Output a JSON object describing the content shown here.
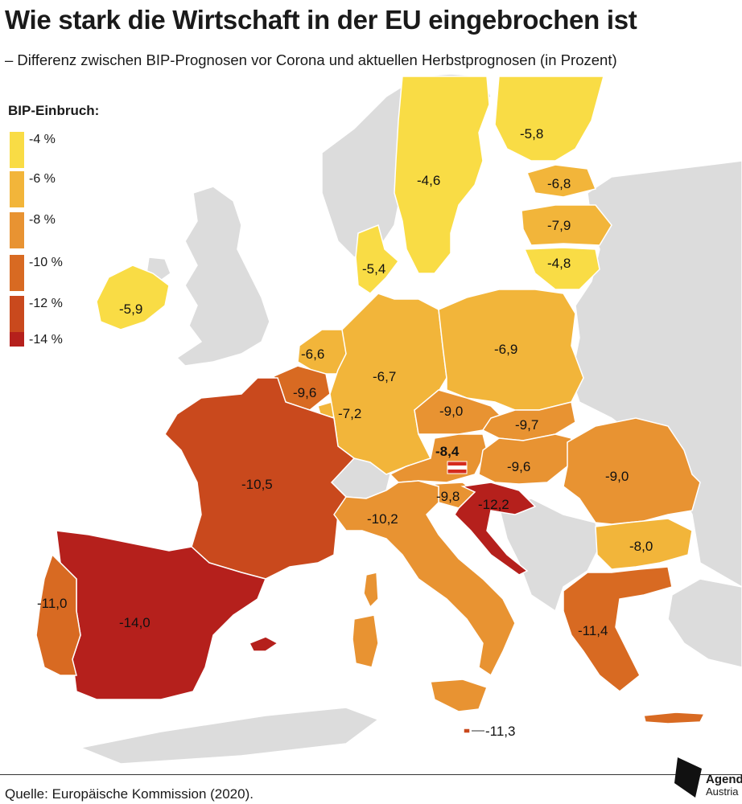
{
  "title": "Wie stark die Wirtschaft in der EU eingebrochen ist",
  "subtitle": "– Differenz zwischen BIP-Prognosen vor Corona und aktuellen Herbstprognosen (in Prozent)",
  "legend": {
    "title": "BIP-Einbruch:",
    "items": [
      {
        "label": "-4 %",
        "color": "#f9dc45"
      },
      {
        "label": "-6 %",
        "color": "#f2b53a"
      },
      {
        "label": "-8 %",
        "color": "#e89332"
      },
      {
        "label": "-10 %",
        "color": "#d86a22"
      },
      {
        "label": "-12 %",
        "color": "#c9491d"
      },
      {
        "label": "-14 %",
        "color": "#b5201c"
      }
    ]
  },
  "countries": [
    {
      "name": "Finnland",
      "value": "-5,8"
    },
    {
      "name": "Schweden",
      "value": "-4,6"
    },
    {
      "name": "Estland",
      "value": "-6,8"
    },
    {
      "name": "Lettland",
      "value": "-7,9"
    },
    {
      "name": "Litauen",
      "value": "-4,8"
    },
    {
      "name": "Dänemark",
      "value": "-5,4"
    },
    {
      "name": "Irland",
      "value": "-5,9"
    },
    {
      "name": "Niederlande",
      "value": "-6,6"
    },
    {
      "name": "Belgien",
      "value": "-9,6"
    },
    {
      "name": "Luxemburg",
      "value": "-7,2"
    },
    {
      "name": "Deutschland",
      "value": "-6,7"
    },
    {
      "name": "Polen",
      "value": "-6,9"
    },
    {
      "name": "Tschechien",
      "value": "-9,0"
    },
    {
      "name": "Slowakei",
      "value": "-9,7"
    },
    {
      "name": "Österreich",
      "value": "-8,4"
    },
    {
      "name": "Ungarn",
      "value": "-9,6"
    },
    {
      "name": "Rumänien",
      "value": "-9,0"
    },
    {
      "name": "Slowenien",
      "value": "-9,8"
    },
    {
      "name": "Kroatien",
      "value": "-12,2"
    },
    {
      "name": "Frankreich",
      "value": "-10,5"
    },
    {
      "name": "Italien",
      "value": "-10,2"
    },
    {
      "name": "Bulgarien",
      "value": "-8,0"
    },
    {
      "name": "Spanien",
      "value": "-14,0"
    },
    {
      "name": "Portugal",
      "value": "-11,0"
    },
    {
      "name": "Griechenland",
      "value": "-11,4"
    },
    {
      "name": "Malta",
      "value": "-11,3"
    }
  ],
  "colors": {
    "non_eu": "#dcdcdc",
    "border": "#ffffff",
    "austria_flag_red": "#d52b1e"
  },
  "source": "Quelle: Europäische Kommission (2020).",
  "brand": {
    "name": "Agenda",
    "sub": "Austria"
  }
}
